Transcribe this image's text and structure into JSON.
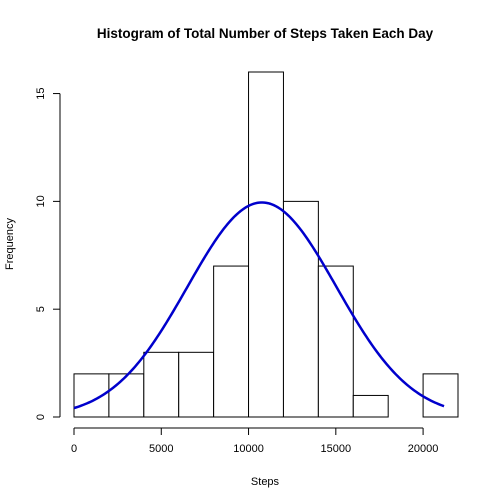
{
  "chart_data": {
    "type": "bar",
    "title": "Histogram of Total Number of Steps Taken Each Day",
    "xlabel": "Steps",
    "ylabel": "Frequency",
    "bins": [
      {
        "start": 0,
        "end": 2000,
        "value": 2
      },
      {
        "start": 2000,
        "end": 4000,
        "value": 2
      },
      {
        "start": 4000,
        "end": 6000,
        "value": 3
      },
      {
        "start": 6000,
        "end": 8000,
        "value": 3
      },
      {
        "start": 8000,
        "end": 10000,
        "value": 7
      },
      {
        "start": 10000,
        "end": 12000,
        "value": 16
      },
      {
        "start": 12000,
        "end": 14000,
        "value": 10
      },
      {
        "start": 14000,
        "end": 16000,
        "value": 7
      },
      {
        "start": 16000,
        "end": 18000,
        "value": 1
      },
      {
        "start": 18000,
        "end": 20000,
        "value": 0
      },
      {
        "start": 20000,
        "end": 22000,
        "value": 2
      }
    ],
    "xlim": [
      0,
      22000
    ],
    "ylim": [
      0,
      16
    ],
    "xticks": [
      0,
      5000,
      10000,
      15000,
      20000
    ],
    "yticks": [
      0,
      5,
      10,
      15
    ],
    "normal_curve": {
      "color": "#0000cc",
      "mean": 10766,
      "sd": 4269,
      "x_range": [
        0,
        21200
      ],
      "peak": 9.95
    },
    "grid": false
  }
}
